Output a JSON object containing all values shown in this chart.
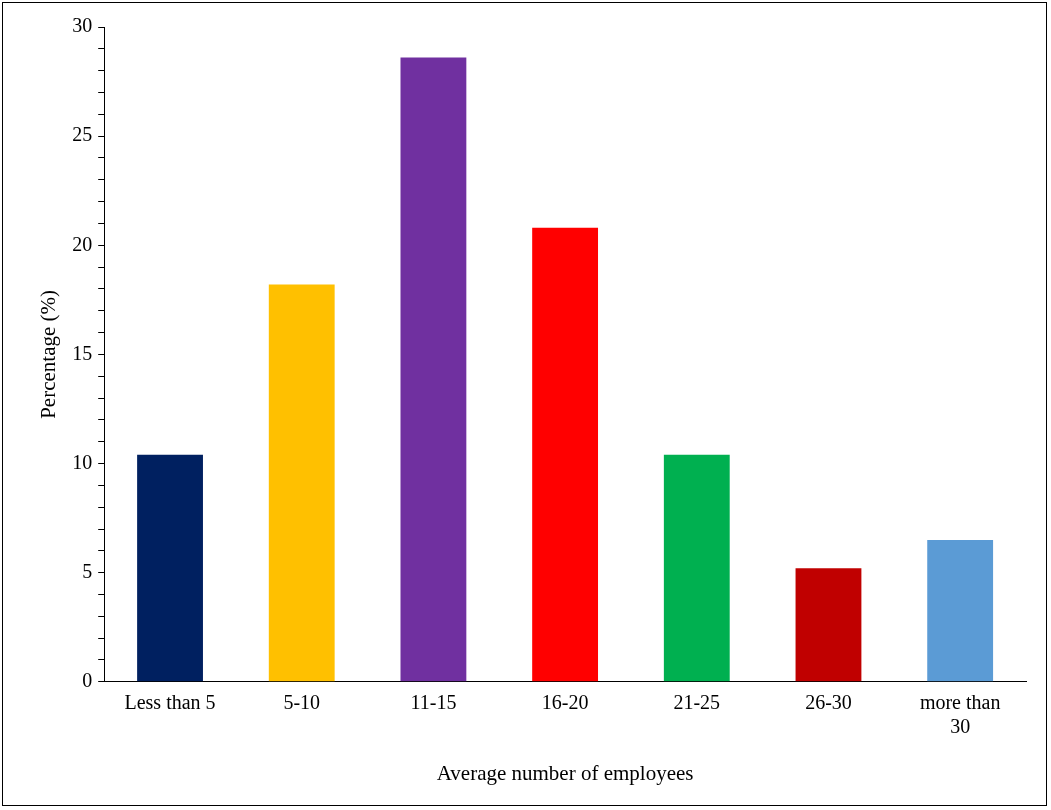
{
  "chart_data": {
    "type": "bar",
    "xlabel": "Average number of employees",
    "ylabel": "Percentage (%)",
    "categories": [
      "Less than 5",
      "5-10",
      "11-15",
      "16-20",
      "21-25",
      "26-30",
      "more than 30"
    ],
    "values": [
      10.4,
      18.2,
      28.6,
      20.8,
      10.4,
      5.2,
      6.5
    ],
    "colors": [
      "#002060",
      "#ffc000",
      "#7030a0",
      "#ff0000",
      "#00b050",
      "#c00000",
      "#5b9bd5"
    ],
    "ylim": [
      0,
      30
    ],
    "yticks": [
      0,
      {
        "value": 1,
        "label": null
      },
      {
        "value": 2,
        "label": null
      },
      {
        "value": 3,
        "label": null
      },
      {
        "value": 4,
        "label": null
      },
      5,
      {
        "value": 6,
        "label": null
      },
      {
        "value": 7,
        "label": null
      },
      {
        "value": 8,
        "label": null
      },
      {
        "value": 9,
        "label": null
      },
      10,
      {
        "value": 11,
        "label": null
      },
      {
        "value": 12,
        "label": null
      },
      {
        "value": 13,
        "label": null
      },
      {
        "value": 14,
        "label": null
      },
      15,
      {
        "value": 16,
        "label": null
      },
      {
        "value": 17,
        "label": null
      },
      {
        "value": 18,
        "label": null
      },
      {
        "value": 19,
        "label": null
      },
      20,
      {
        "value": 21,
        "label": null
      },
      {
        "value": 22,
        "label": null
      },
      {
        "value": 23,
        "label": null
      },
      {
        "value": 24,
        "label": null
      },
      25,
      {
        "value": 26,
        "label": null
      },
      {
        "value": 27,
        "label": null
      },
      {
        "value": 28,
        "label": null
      },
      {
        "value": 29,
        "label": null
      },
      30
    ],
    "grid": false,
    "legend": false
  }
}
